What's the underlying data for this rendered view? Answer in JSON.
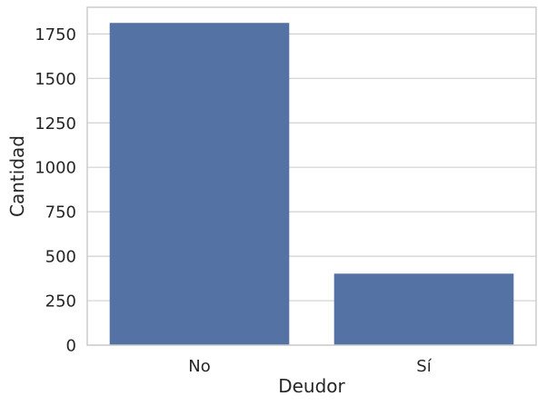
{
  "chart_data": {
    "type": "bar",
    "categories": [
      "No",
      "Sí"
    ],
    "values": [
      1812,
      402
    ],
    "xlabel": "Deudor",
    "ylabel": "Cantidad",
    "ylim": [
      0,
      1900
    ],
    "yticks": [
      0,
      250,
      500,
      750,
      1000,
      1250,
      1500,
      1750
    ],
    "grid": "horizontal",
    "bar_color": "#5572a4",
    "grid_color": "#d0d0d0",
    "spine_color": "#cccccc"
  }
}
